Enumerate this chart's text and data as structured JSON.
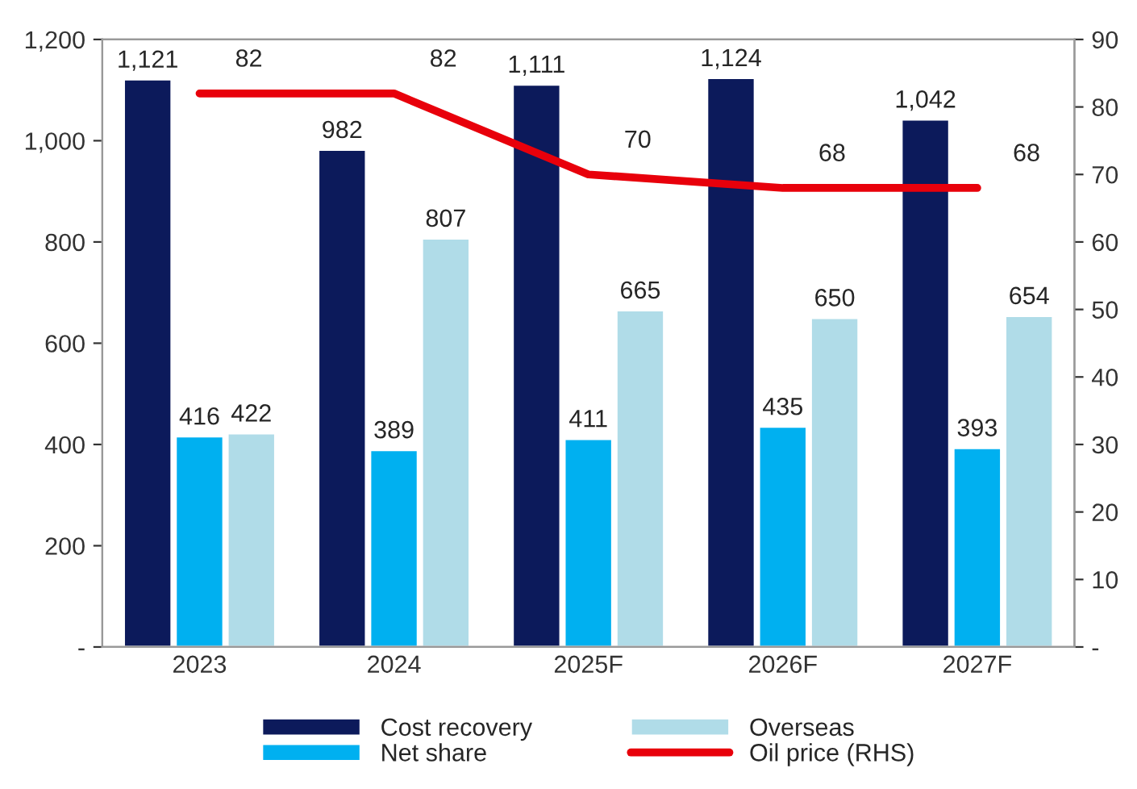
{
  "chart_data": {
    "type": "bar",
    "categories": [
      "2023",
      "2024",
      "2025F",
      "2026F",
      "2027F"
    ],
    "series": [
      {
        "name": "Cost recovery",
        "color": "#0c1a5b",
        "values": [
          1121,
          982,
          1111,
          1124,
          1042
        ],
        "value_labels": [
          "1,121",
          "982",
          "1,111",
          "1,124",
          "1,042"
        ]
      },
      {
        "name": "Net share",
        "color": "#00b0f0",
        "values": [
          416,
          389,
          411,
          435,
          393
        ],
        "value_labels": [
          "416",
          "389",
          "411",
          "435",
          "393"
        ]
      },
      {
        "name": "Overseas",
        "color": "#b0dce8",
        "values": [
          422,
          807,
          665,
          650,
          654
        ],
        "value_labels": [
          "422",
          "807",
          "665",
          "650",
          "654"
        ]
      },
      {
        "name": "Oil price (RHS)",
        "type": "line",
        "axis": "y2",
        "color": "#e8000b",
        "values": [
          82,
          82,
          70,
          68,
          68
        ],
        "value_labels": [
          "82",
          "82",
          "70",
          "68",
          "68"
        ]
      }
    ],
    "ylim": [
      0,
      1200
    ],
    "yticks": [
      {
        "value": 0,
        "label": "-"
      },
      200,
      400,
      600,
      800,
      {
        "value": 1000,
        "label": "1,000"
      },
      {
        "value": 1200,
        "label": "1,200"
      }
    ],
    "y2lim": [
      0,
      90
    ],
    "y2ticks": [
      {
        "value": 0,
        "label": "-"
      },
      10,
      20,
      30,
      40,
      50,
      60,
      70,
      80,
      90
    ],
    "grid": false,
    "legend": "bottom",
    "marker": "none",
    "line_style": "solid"
  }
}
